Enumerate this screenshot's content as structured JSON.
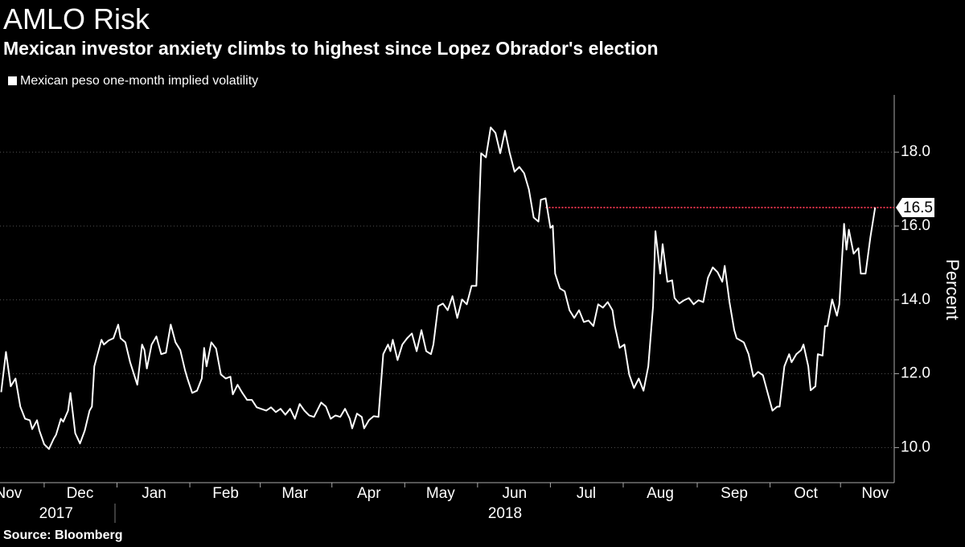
{
  "chart_data": {
    "type": "line",
    "title": "AMLO Risk",
    "subtitle": "Mexican investor anxiety climbs to highest since Lopez Obrador's election",
    "y_label": "Percent",
    "source": "Source: Bloomberg",
    "series": [
      {
        "name": "Mexican peso one-month implied volatility",
        "color": "#ffffff",
        "x": [
          -18,
          -16,
          -14,
          -12,
          -10,
          -8,
          -6,
          -5,
          -3,
          -2,
          0,
          2,
          4,
          5,
          7,
          8,
          10,
          11,
          13,
          15,
          17,
          19,
          20,
          21,
          24,
          25,
          27,
          29,
          31,
          32,
          34,
          36,
          39,
          41,
          42,
          43,
          45,
          47,
          49,
          51,
          53,
          55,
          57,
          59,
          60,
          62,
          64,
          66,
          67,
          68,
          70,
          72,
          74,
          76,
          78,
          79,
          81,
          83,
          85,
          87,
          89,
          93,
          95,
          97,
          99,
          101,
          103,
          105,
          107,
          109,
          111,
          113,
          116,
          118,
          120,
          122,
          124,
          126,
          128,
          129,
          131,
          133,
          134,
          136,
          138,
          140,
          142,
          144,
          145,
          146,
          148,
          150,
          152,
          154,
          156,
          158,
          160,
          162,
          163,
          165,
          167,
          169,
          171,
          173,
          175,
          177,
          179,
          181,
          183,
          185,
          187,
          189,
          191,
          193,
          195,
          197,
          199,
          201,
          203,
          205,
          207,
          208,
          210,
          212,
          213,
          214,
          216,
          218,
          220,
          222,
          224,
          226,
          228,
          230,
          232,
          234,
          236,
          238,
          239,
          241,
          243,
          245,
          247,
          249,
          251,
          253,
          255,
          256,
          258,
          259,
          261,
          263,
          264,
          266,
          268,
          270,
          272,
          274,
          276,
          278,
          280,
          282,
          284,
          285,
          287,
          289,
          290,
          293,
          295,
          297,
          299,
          301,
          303,
          305,
          307,
          308,
          310,
          312,
          313,
          315,
          317,
          318,
          320,
          321,
          323,
          324,
          326,
          327,
          328,
          330,
          332,
          333,
          335,
          336,
          337,
          339,
          341,
          342,
          344,
          346,
          348
        ],
        "values": [
          11.5,
          12.59,
          11.66,
          11.87,
          11.11,
          10.78,
          10.74,
          10.5,
          10.74,
          10.46,
          10.09,
          9.96,
          10.24,
          10.35,
          10.78,
          10.7,
          11.0,
          11.48,
          10.39,
          10.11,
          10.46,
          11.0,
          11.11,
          12.2,
          12.92,
          12.79,
          12.9,
          12.96,
          13.33,
          12.96,
          12.85,
          12.31,
          11.7,
          12.79,
          12.64,
          12.14,
          12.79,
          13.01,
          12.53,
          12.57,
          13.33,
          12.85,
          12.64,
          12.09,
          11.87,
          11.48,
          11.54,
          11.87,
          12.7,
          12.2,
          12.85,
          12.68,
          11.98,
          11.87,
          11.92,
          11.44,
          11.7,
          11.48,
          11.29,
          11.29,
          11.09,
          11.0,
          11.09,
          10.96,
          11.05,
          10.89,
          11.05,
          10.78,
          11.18,
          11.0,
          10.87,
          10.83,
          11.22,
          11.11,
          10.78,
          10.87,
          10.83,
          11.05,
          10.78,
          10.52,
          10.92,
          10.83,
          10.52,
          10.74,
          10.85,
          10.83,
          12.53,
          12.79,
          12.61,
          12.92,
          12.37,
          12.79,
          12.96,
          13.09,
          12.61,
          13.18,
          12.61,
          12.53,
          12.79,
          13.83,
          13.9,
          13.72,
          14.1,
          13.51,
          14.01,
          13.88,
          14.38,
          14.38,
          17.97,
          17.86,
          18.67,
          18.52,
          17.97,
          18.58,
          17.97,
          17.47,
          17.6,
          17.43,
          16.99,
          16.23,
          16.12,
          16.71,
          16.75,
          15.95,
          16.01,
          14.71,
          14.31,
          14.23,
          13.72,
          13.51,
          13.72,
          13.4,
          13.44,
          13.29,
          13.88,
          13.79,
          13.94,
          13.72,
          13.29,
          12.7,
          12.79,
          11.98,
          11.61,
          11.87,
          11.54,
          12.2,
          13.83,
          15.86,
          14.71,
          15.51,
          14.49,
          14.53,
          14.05,
          13.9,
          13.99,
          14.05,
          13.88,
          13.99,
          13.94,
          14.6,
          14.88,
          14.75,
          14.49,
          14.92,
          13.94,
          13.18,
          12.96,
          12.85,
          12.53,
          11.92,
          12.05,
          11.96,
          11.48,
          11.0,
          11.11,
          11.11,
          12.2,
          12.53,
          12.31,
          12.53,
          12.64,
          12.79,
          12.2,
          11.55,
          11.66,
          12.53,
          12.49,
          13.29,
          13.29,
          14.01,
          13.57,
          13.88,
          16.06,
          15.36,
          15.9,
          15.25,
          15.4,
          14.71,
          14.71,
          15.69,
          16.5
        ]
      }
    ],
    "xlim": [
      -18.5,
      356
    ],
    "xticks": [
      {
        "value": -15,
        "label": "Nov"
      },
      {
        "value": 15,
        "label": "Dec"
      },
      {
        "value": 46,
        "label": "Jan"
      },
      {
        "value": 76,
        "label": "Feb"
      },
      {
        "value": 105,
        "label": "Mar"
      },
      {
        "value": 136,
        "label": "Apr"
      },
      {
        "value": 166,
        "label": "May"
      },
      {
        "value": 197,
        "label": "Jun"
      },
      {
        "value": 227,
        "label": "Jul"
      },
      {
        "value": 258,
        "label": "Aug"
      },
      {
        "value": 289,
        "label": "Sep"
      },
      {
        "value": 319,
        "label": "Oct"
      },
      {
        "value": 348,
        "label": "Nov"
      }
    ],
    "year_labels": [
      {
        "value": 5,
        "label": "2017"
      },
      {
        "value": 193,
        "label": "2018"
      }
    ],
    "ylim": [
      9.05,
      19.55
    ],
    "yticks": [
      {
        "value": 10,
        "label": "10.0"
      },
      {
        "value": 12,
        "label": "12.0"
      },
      {
        "value": 14,
        "label": "14.0"
      },
      {
        "value": 16,
        "label": "16.0"
      },
      {
        "value": 18,
        "label": "18.0"
      }
    ],
    "grid": true,
    "reference_line": {
      "value": 16.5,
      "x_start": 210,
      "color": "#e8334a"
    }
  }
}
